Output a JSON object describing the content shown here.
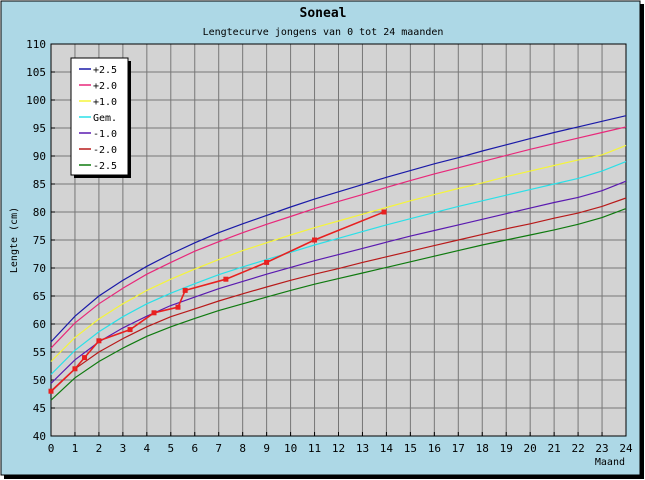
{
  "chart_data": {
    "type": "line",
    "title": "Soneal",
    "subtitle": "Lengtecurve jongens van 0 tot 24 maanden",
    "xlabel": "Maand",
    "ylabel": "Lengte (cm)",
    "xlim": [
      0,
      24
    ],
    "ylim": [
      40,
      110
    ],
    "x_ticks": [
      0,
      1,
      2,
      3,
      4,
      5,
      6,
      7,
      8,
      9,
      10,
      11,
      12,
      13,
      14,
      15,
      16,
      17,
      18,
      19,
      20,
      21,
      22,
      23,
      24
    ],
    "y_ticks": [
      40,
      45,
      50,
      55,
      60,
      65,
      70,
      75,
      80,
      85,
      90,
      95,
      100,
      105,
      110
    ],
    "grid": true,
    "legend_position": "top-left",
    "x": [
      0,
      1,
      2,
      3,
      4,
      5,
      6,
      7,
      8,
      9,
      10,
      11,
      12,
      13,
      14,
      15,
      16,
      17,
      18,
      19,
      20,
      21,
      22,
      23,
      24
    ],
    "series": [
      {
        "name": "+2.5",
        "color": "#1a1aa8",
        "values": [
          56.8,
          61.4,
          65.0,
          67.8,
          70.3,
          72.5,
          74.5,
          76.3,
          77.9,
          79.4,
          80.9,
          82.3,
          83.6,
          84.9,
          86.2,
          87.4,
          88.6,
          89.7,
          90.9,
          92.0,
          93.1,
          94.2,
          95.2,
          96.2,
          97.2
        ]
      },
      {
        "name": "+2.0",
        "color": "#e8287a",
        "values": [
          55.7,
          60.2,
          63.6,
          66.4,
          68.9,
          71.0,
          73.0,
          74.7,
          76.3,
          77.8,
          79.2,
          80.6,
          81.9,
          83.1,
          84.4,
          85.6,
          86.8,
          87.9,
          89.0,
          90.1,
          91.2,
          92.2,
          93.2,
          94.2,
          95.2
        ]
      },
      {
        "name": "+1.0",
        "color": "#f5f53a",
        "values": [
          53.3,
          57.6,
          60.9,
          63.6,
          66.0,
          68.0,
          69.8,
          71.5,
          73.1,
          74.5,
          75.9,
          77.2,
          78.4,
          79.6,
          80.8,
          82.0,
          83.1,
          84.2,
          85.2,
          86.3,
          87.3,
          88.3,
          89.3,
          90.2,
          91.9
        ]
      },
      {
        "name": "Gem.",
        "color": "#2ae0e8",
        "values": [
          51.0,
          55.3,
          58.6,
          61.3,
          63.6,
          65.5,
          67.2,
          68.8,
          70.2,
          71.5,
          72.8,
          74.1,
          75.3,
          76.5,
          77.7,
          78.8,
          79.9,
          81.0,
          82.0,
          83.0,
          84.0,
          85.0,
          86.0,
          87.3,
          89.0
        ]
      },
      {
        "name": "-1.0",
        "color": "#5a1ab0",
        "values": [
          49.4,
          53.6,
          56.8,
          59.3,
          61.4,
          63.3,
          64.8,
          66.3,
          67.6,
          68.9,
          70.1,
          71.3,
          72.4,
          73.5,
          74.6,
          75.7,
          76.7,
          77.7,
          78.7,
          79.7,
          80.7,
          81.7,
          82.6,
          83.8,
          85.5
        ]
      },
      {
        "name": "-2.0",
        "color": "#b81a1a",
        "values": [
          47.9,
          52.0,
          55.0,
          57.4,
          59.5,
          61.3,
          62.7,
          64.1,
          65.4,
          66.6,
          67.8,
          68.9,
          69.9,
          71.0,
          72.0,
          73.0,
          74.0,
          75.0,
          76.0,
          77.0,
          77.9,
          78.9,
          79.8,
          81.0,
          82.5
        ]
      },
      {
        "name": "-2.5",
        "color": "#0f7a0f",
        "values": [
          46.4,
          50.4,
          53.3,
          55.7,
          57.8,
          59.5,
          61.0,
          62.4,
          63.6,
          64.8,
          66.0,
          67.1,
          68.1,
          69.1,
          70.1,
          71.1,
          72.1,
          73.1,
          74.1,
          75.0,
          75.9,
          76.8,
          77.8,
          79.0,
          80.6
        ]
      }
    ],
    "measurements": {
      "color": "#e82020",
      "points": [
        {
          "x": 0.0,
          "y": 48
        },
        {
          "x": 1.0,
          "y": 52
        },
        {
          "x": 1.4,
          "y": 54
        },
        {
          "x": 2.0,
          "y": 57
        },
        {
          "x": 3.3,
          "y": 59
        },
        {
          "x": 4.3,
          "y": 62
        },
        {
          "x": 5.3,
          "y": 63
        },
        {
          "x": 5.6,
          "y": 66
        },
        {
          "x": 7.3,
          "y": 68
        },
        {
          "x": 9.0,
          "y": 71
        },
        {
          "x": 11.0,
          "y": 75
        },
        {
          "x": 13.9,
          "y": 80
        }
      ]
    }
  }
}
